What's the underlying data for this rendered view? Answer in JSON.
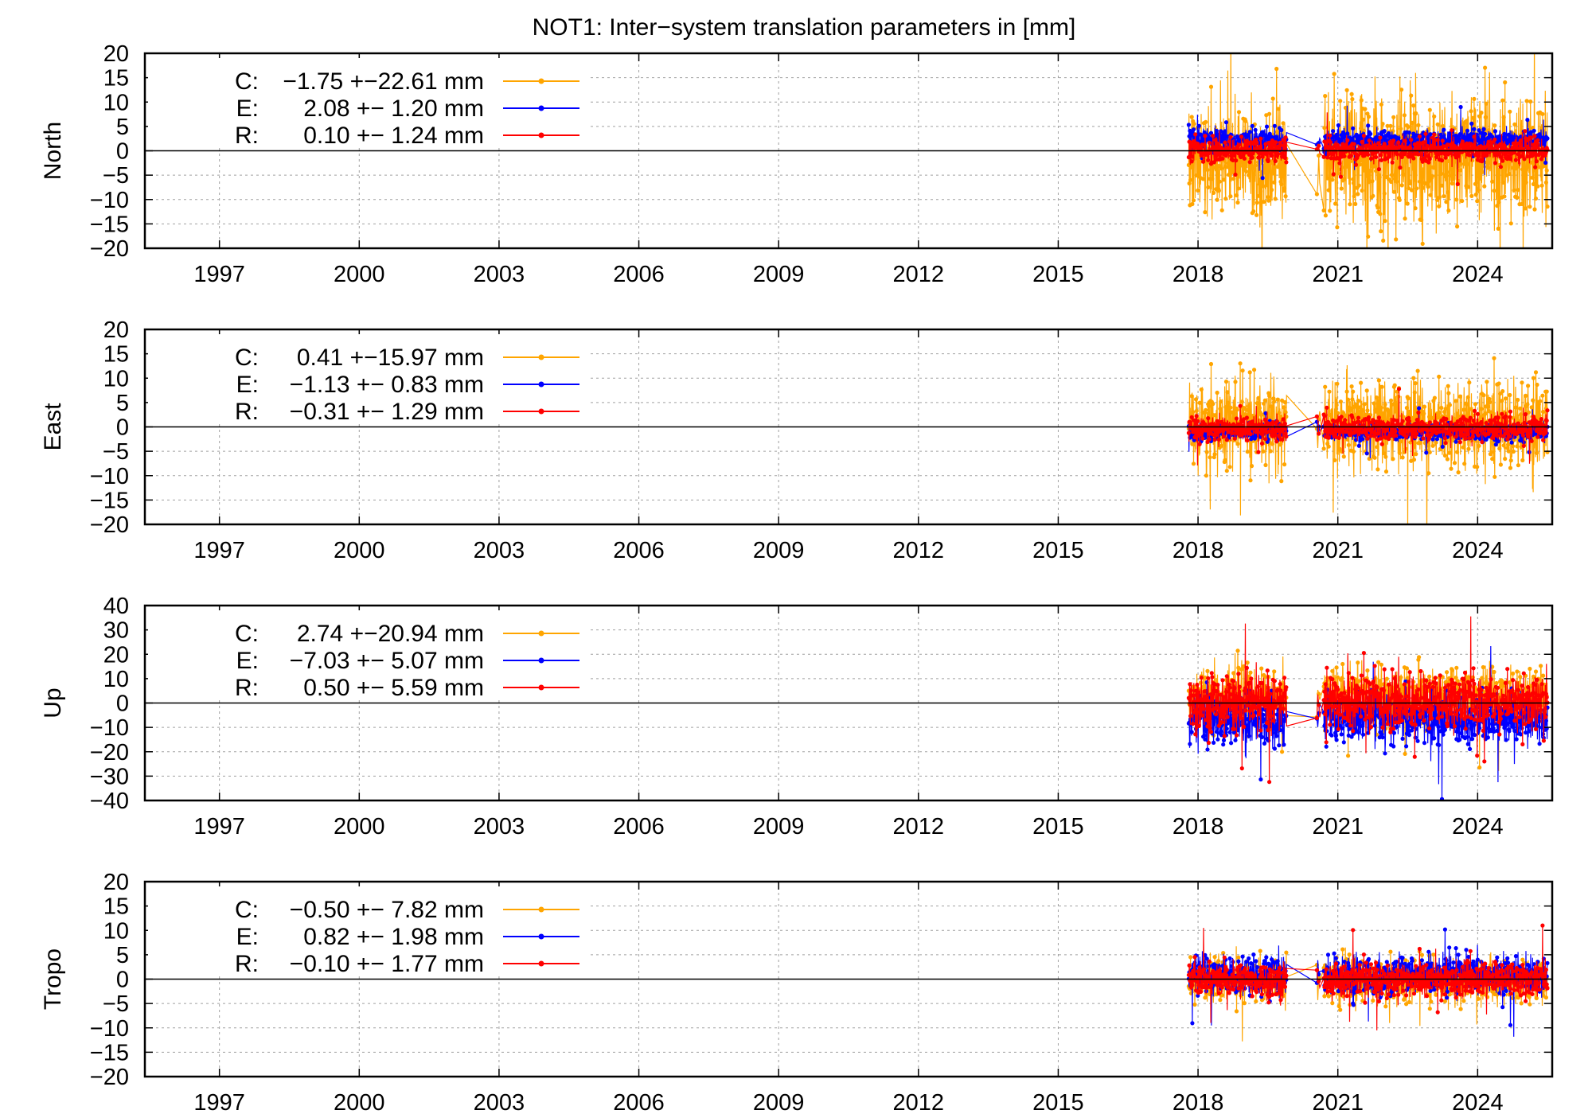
{
  "chart_data": {
    "type": "line",
    "title": "NOT1: Inter−system translation parameters in [mm]",
    "x_range": [
      1995.4,
      2025.6
    ],
    "x_ticks": [
      1997,
      2000,
      2003,
      2006,
      2009,
      2012,
      2015,
      2018,
      2021,
      2024
    ],
    "x_tick_labels": [
      "1997",
      "2000",
      "2003",
      "2006",
      "2009",
      "2012",
      "2015",
      "2018",
      "2021",
      "2024"
    ],
    "grid": true,
    "legend_position": "top-left",
    "colors": {
      "C": "#ffa500",
      "E": "#0000ff",
      "R": "#ff0000",
      "axis": "#000000",
      "grid": "#a0a0a0"
    },
    "data_span": {
      "segment_1": [
        2017.8,
        2019.9
      ],
      "segment_2": [
        2020.7,
        2025.5
      ]
    },
    "panels": [
      {
        "ylabel": "North",
        "ylim": [
          -20,
          20
        ],
        "y_ticks": [
          20,
          15,
          10,
          5,
          0,
          -5,
          -10,
          -15,
          -20
        ],
        "y_tick_labels": [
          "20",
          "15",
          "10",
          "5",
          "0",
          "−5",
          "−10",
          "−15",
          "−20"
        ],
        "series": [
          {
            "name": "C",
            "mean": -1.75,
            "std": 22.61,
            "label_prefix": "C:",
            "label_stats": "−1.75 +−22.61 mm"
          },
          {
            "name": "E",
            "mean": 2.08,
            "std": 1.2,
            "label_prefix": "E:",
            "label_stats": "2.08 +− 1.20 mm"
          },
          {
            "name": "R",
            "mean": 0.1,
            "std": 1.24,
            "label_prefix": "R:",
            "label_stats": "0.10 +− 1.24 mm"
          }
        ]
      },
      {
        "ylabel": "East",
        "ylim": [
          -20,
          20
        ],
        "y_ticks": [
          20,
          15,
          10,
          5,
          0,
          -5,
          -10,
          -15,
          -20
        ],
        "y_tick_labels": [
          "20",
          "15",
          "10",
          "5",
          "0",
          "−5",
          "−10",
          "−15",
          "−20"
        ],
        "series": [
          {
            "name": "C",
            "mean": 0.41,
            "std": 15.97,
            "label_prefix": "C:",
            "label_stats": "0.41 +−15.97 mm"
          },
          {
            "name": "E",
            "mean": -1.13,
            "std": 0.83,
            "label_prefix": "E:",
            "label_stats": "−1.13 +− 0.83 mm"
          },
          {
            "name": "R",
            "mean": -0.31,
            "std": 1.29,
            "label_prefix": "R:",
            "label_stats": "−0.31 +− 1.29 mm"
          }
        ]
      },
      {
        "ylabel": "Up",
        "ylim": [
          -40,
          40
        ],
        "y_ticks": [
          40,
          30,
          20,
          10,
          0,
          -10,
          -20,
          -30,
          -40
        ],
        "y_tick_labels": [
          "40",
          "30",
          "20",
          "10",
          "0",
          "−10",
          "−20",
          "−30",
          "−40"
        ],
        "series": [
          {
            "name": "C",
            "mean": 2.74,
            "std": 20.94,
            "label_prefix": "C:",
            "label_stats": "2.74 +−20.94 mm"
          },
          {
            "name": "E",
            "mean": -7.03,
            "std": 5.07,
            "label_prefix": "E:",
            "label_stats": "−7.03 +− 5.07 mm"
          },
          {
            "name": "R",
            "mean": 0.5,
            "std": 5.59,
            "label_prefix": "R:",
            "label_stats": "0.50 +− 5.59 mm"
          }
        ]
      },
      {
        "ylabel": "Tropo",
        "ylim": [
          -20,
          20
        ],
        "y_ticks": [
          20,
          15,
          10,
          5,
          0,
          -5,
          -10,
          -15,
          -20
        ],
        "y_tick_labels": [
          "20",
          "15",
          "10",
          "5",
          "0",
          "−5",
          "−10",
          "−15",
          "−20"
        ],
        "series": [
          {
            "name": "C",
            "mean": -0.5,
            "std": 7.82,
            "label_prefix": "C:",
            "label_stats": "−0.50 +− 7.82 mm"
          },
          {
            "name": "E",
            "mean": 0.82,
            "std": 1.98,
            "label_prefix": "E:",
            "label_stats": "0.82 +− 1.98 mm"
          },
          {
            "name": "R",
            "mean": -0.1,
            "std": 1.77,
            "label_prefix": "R:",
            "label_stats": "−0.10 +− 1.77 mm"
          }
        ]
      }
    ]
  }
}
